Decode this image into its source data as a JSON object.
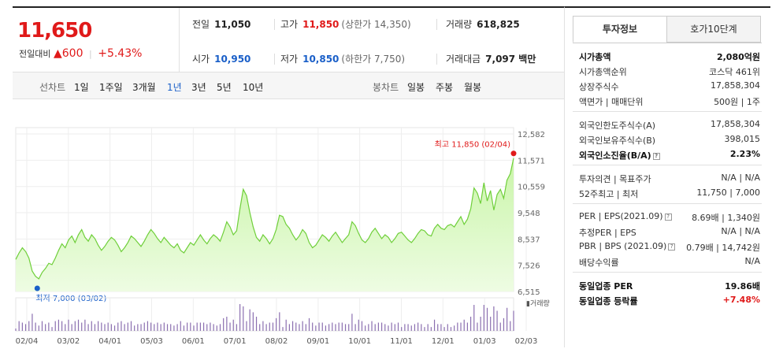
{
  "price": {
    "current": "11,650",
    "change_label": "전일대비",
    "change_arrow": "▲",
    "change": "600",
    "change_pct": "+5.43%"
  },
  "quote": {
    "prev_close_label": "전일",
    "prev_close": "11,050",
    "high_label": "고가",
    "high": "11,850",
    "upper_limit": "(상한가 14,350)",
    "volume_label": "거래량",
    "volume": "618,825",
    "open_label": "시가",
    "open": "10,950",
    "low_label": "저가",
    "low": "10,850",
    "lower_limit": "(하한가 7,750)",
    "value_label": "거래대금",
    "value": "7,097 백만"
  },
  "periods": {
    "label": "선차트",
    "items": [
      "1일",
      "1주일",
      "3개월",
      "1년",
      "3년",
      "5년",
      "10년"
    ],
    "active": "1년",
    "candle_label": "봉차트",
    "candle_items": [
      "일봉",
      "주봉",
      "월봉"
    ]
  },
  "chart_data": {
    "type": "area",
    "x_ticks": [
      "02/04",
      "03/02",
      "04/01",
      "05/03",
      "06/01",
      "07/01",
      "08/02",
      "09/01",
      "10/01",
      "11/01",
      "12/01",
      "01/03",
      "02/03"
    ],
    "y_ticks": [
      12582,
      11571,
      10559,
      9548,
      8537,
      7526,
      6515
    ],
    "ylim": [
      6515,
      12582
    ],
    "max_label": "최고 11,850 (02/04)",
    "min_label": "최저 7,000 (03/02)",
    "volume_label": "거래량",
    "values": [
      7750,
      8000,
      8200,
      8050,
      7800,
      7300,
      7100,
      7000,
      7250,
      7400,
      7600,
      7550,
      7800,
      8100,
      8350,
      8200,
      8500,
      8650,
      8400,
      8700,
      8900,
      8600,
      8450,
      8700,
      8550,
      8300,
      8100,
      8250,
      8450,
      8600,
      8500,
      8300,
      8050,
      8200,
      8400,
      8650,
      8550,
      8400,
      8250,
      8450,
      8700,
      8900,
      8750,
      8550,
      8400,
      8600,
      8450,
      8300,
      8200,
      8350,
      8100,
      8000,
      8200,
      8400,
      8300,
      8500,
      8700,
      8500,
      8350,
      8550,
      8700,
      8600,
      8450,
      8800,
      9200,
      9000,
      8700,
      8850,
      9700,
      10450,
      10200,
      9550,
      9000,
      8600,
      8450,
      8700,
      8550,
      8350,
      8550,
      8900,
      9450,
      9400,
      9100,
      8950,
      8700,
      8500,
      8650,
      8900,
      8750,
      8400,
      8200,
      8300,
      8500,
      8700,
      8600,
      8450,
      8650,
      8800,
      8600,
      8400,
      8550,
      8700,
      9200,
      9050,
      8750,
      8500,
      8400,
      8550,
      8800,
      8950,
      8750,
      8550,
      8700,
      8600,
      8400,
      8550,
      8750,
      8800,
      8650,
      8500,
      8400,
      8550,
      8750,
      8900,
      8850,
      8700,
      8650,
      8950,
      9100,
      8950,
      8900,
      9050,
      9100,
      9000,
      9200,
      9400,
      9100,
      9300,
      9700,
      10500,
      10300,
      9900,
      10700,
      10000,
      10400,
      9650,
      10250,
      10450,
      10100,
      10800,
      11050,
      11650
    ]
  },
  "info": {
    "tab_active": "투자정보",
    "tab_other": "호가10단계",
    "rows1": [
      {
        "k": "시가총액",
        "v": "2,080억원"
      },
      {
        "k": "시가총액순위",
        "v": "코스닥 461위"
      },
      {
        "k": "상장주식수",
        "v": "17,858,304"
      },
      {
        "k": "액면가 | 매매단위",
        "v": "500원 | 1주"
      }
    ],
    "rows2": [
      {
        "k": "외국인한도주식수(A)",
        "v": "17,858,304"
      },
      {
        "k": "외국인보유주식수(B)",
        "v": "398,015"
      },
      {
        "k": "외국인소진율(B/A)",
        "v": "2.23%"
      }
    ],
    "rows3": [
      {
        "k": "투자의견 | 목표주가",
        "v": "N/A | N/A"
      },
      {
        "k": "52주최고 | 최저",
        "v": "11,750 | 7,000"
      }
    ],
    "rows4": [
      {
        "k": "PER | EPS(2021.09)",
        "v": "8.69배 | 1,340원"
      },
      {
        "k": "추정PER | EPS",
        "v": "N/A | N/A"
      },
      {
        "k": "PBR | BPS (2021.09)",
        "v": "0.79배 | 14,742원"
      },
      {
        "k": "배당수익률",
        "v": "N/A"
      }
    ],
    "rows5": [
      {
        "k": "동일업종 PER",
        "v": "19.86배"
      },
      {
        "k": "동일업종 등락률",
        "v": "+7.48%"
      }
    ]
  }
}
